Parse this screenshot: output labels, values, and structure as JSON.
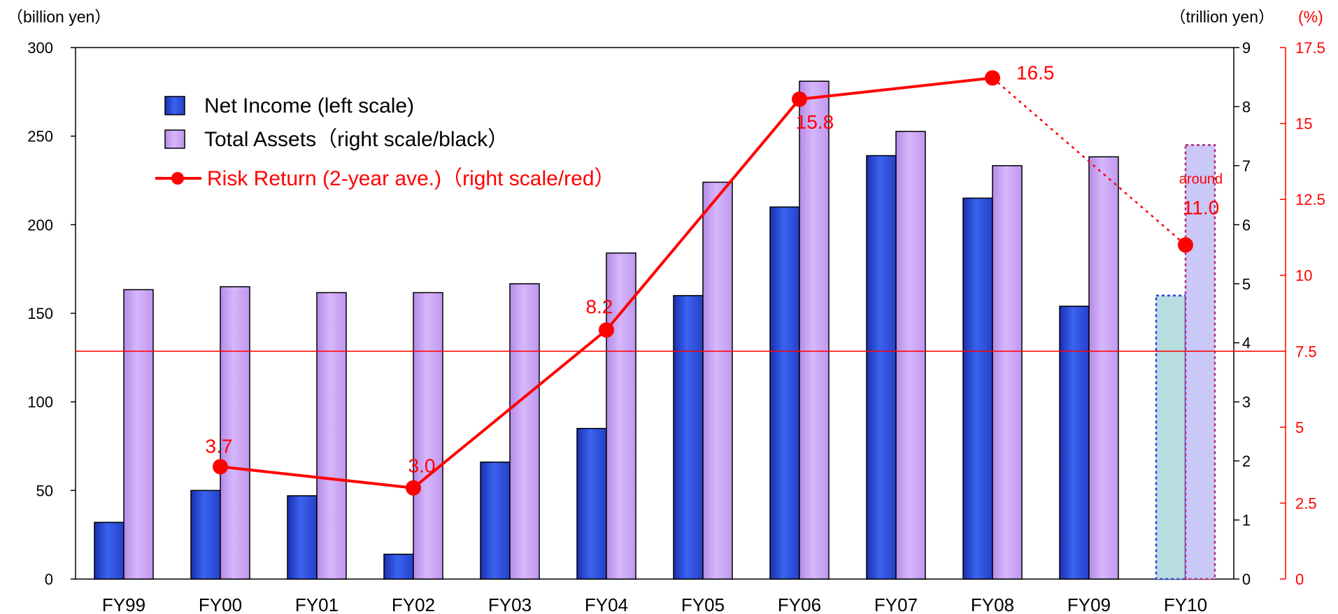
{
  "chart_data": {
    "type": "bar",
    "categories": [
      "FY99",
      "FY00",
      "FY01",
      "FY02",
      "FY03",
      "FY04",
      "FY05",
      "FY06",
      "FY07",
      "FY08",
      "FY09",
      "FY10"
    ],
    "series": [
      {
        "name": "Net Income (left scale)",
        "axis": "left",
        "color": "#1f3fd6",
        "values": [
          32,
          50,
          47,
          14,
          66,
          85,
          160,
          210,
          239,
          215,
          154,
          160
        ],
        "projected": [
          false,
          false,
          false,
          false,
          false,
          false,
          false,
          false,
          false,
          false,
          false,
          true
        ]
      },
      {
        "name": "Total Assets（right scale/black）",
        "axis": "right",
        "color": "#c9a3f2",
        "values": [
          4.9,
          4.95,
          4.85,
          4.85,
          5.0,
          5.52,
          6.72,
          8.43,
          7.58,
          7.0,
          7.15,
          7.35
        ],
        "projected": [
          false,
          false,
          false,
          false,
          false,
          false,
          false,
          false,
          false,
          false,
          false,
          true
        ]
      },
      {
        "name": "Risk Return (2-year ave.)（right scale/red）",
        "type": "line",
        "axis": "right-percent",
        "color": "#ff0000",
        "points": [
          {
            "category": "FY00",
            "value": 3.7,
            "label": "3.7"
          },
          {
            "category": "FY02",
            "value": 3.0,
            "label": "3.0"
          },
          {
            "category": "FY04",
            "value": 8.2,
            "label": "8.2"
          },
          {
            "category": "FY06",
            "value": 15.8,
            "label": "15.8"
          },
          {
            "category": "FY08",
            "value": 16.5,
            "label": "16.5"
          },
          {
            "category": "FY10",
            "value": 11.0,
            "label": "11.0",
            "prefix": "around",
            "projected": true
          }
        ]
      }
    ],
    "axes": {
      "left": {
        "unit": "（billion yen）",
        "ylim": [
          0,
          300
        ],
        "ticks": [
          "0",
          "50",
          "100",
          "150",
          "200",
          "250",
          "300"
        ]
      },
      "right": {
        "unit": "（trillion yen）",
        "ylim": [
          0,
          9
        ],
        "ticks": [
          "0",
          "1",
          "2",
          "3",
          "4",
          "5",
          "6",
          "7",
          "8",
          "9"
        ]
      },
      "right_percent": {
        "unit": "(%)",
        "ylim": [
          0,
          17.5
        ],
        "ticks": [
          "0",
          "2.5",
          "5",
          "7.5",
          "10",
          "12.5",
          "15",
          "17.5"
        ],
        "color": "#ff0000"
      }
    },
    "reference_line": {
      "axis": "right-percent",
      "value": 7.5,
      "color": "#ff0000"
    },
    "legend_placement": "top-left",
    "grid": false
  }
}
